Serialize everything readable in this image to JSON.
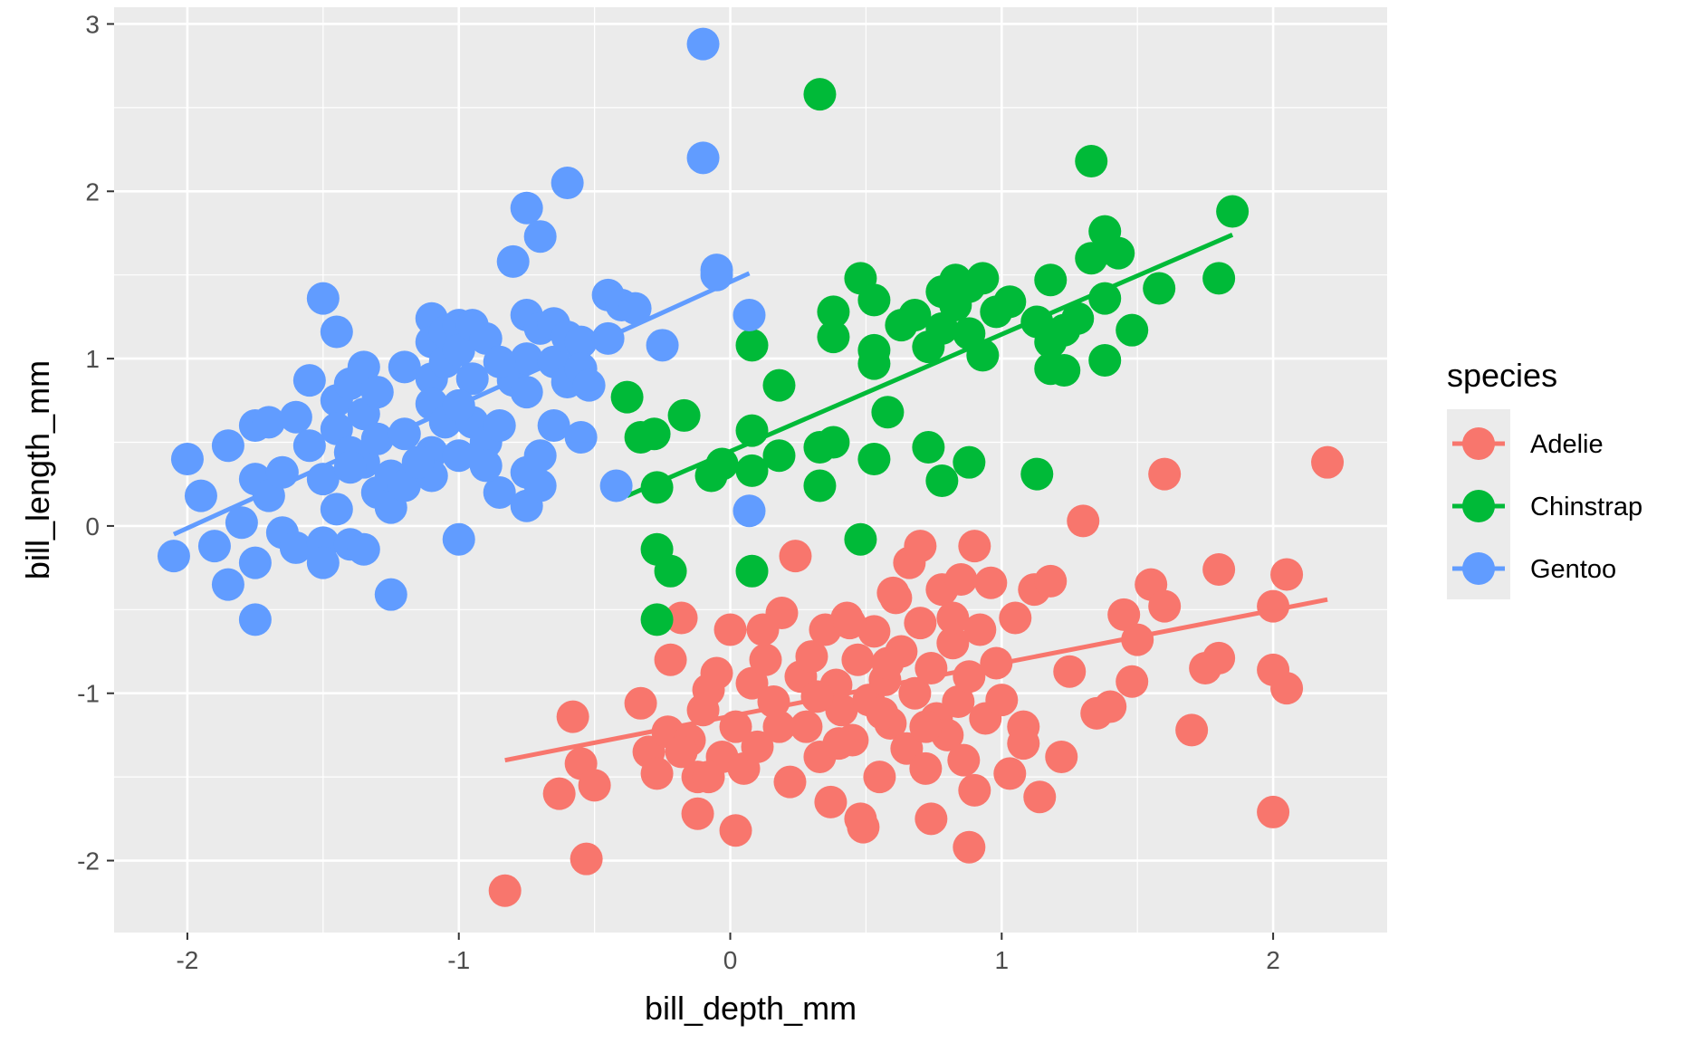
{
  "chart_data": {
    "type": "scatter",
    "title": "",
    "xlabel": "bill_depth_mm",
    "ylabel": "bill_length_mm",
    "xlim": [
      -2.27,
      2.42
    ],
    "ylim": [
      -2.43,
      3.1
    ],
    "x_ticks": [
      -2,
      -1,
      0,
      1,
      2
    ],
    "y_ticks": [
      -2,
      -1,
      0,
      1,
      2,
      3
    ],
    "x_tick_labels": [
      "-2",
      "-1",
      "0",
      "1",
      "2"
    ],
    "y_tick_labels": [
      "-2",
      "-1",
      "0",
      "1",
      "2",
      "3"
    ],
    "grid": true,
    "panel_background": "#ebebeb",
    "legend": {
      "title": "species",
      "position": "right"
    },
    "series": [
      {
        "name": "Adelie",
        "color": "#f8766d",
        "trend": {
          "x": [
            -0.83,
            2.2
          ],
          "y": [
            -1.4,
            -0.44
          ]
        },
        "points": [
          [
            -0.83,
            -2.18
          ],
          [
            -0.53,
            -1.99
          ],
          [
            -0.63,
            -1.6
          ],
          [
            -0.55,
            -1.42
          ],
          [
            -0.5,
            -1.55
          ],
          [
            -0.58,
            -1.14
          ],
          [
            -0.33,
            -1.06
          ],
          [
            -0.3,
            -1.35
          ],
          [
            -0.27,
            -1.48
          ],
          [
            -0.23,
            -1.23
          ],
          [
            -0.22,
            -0.8
          ],
          [
            -0.18,
            -0.55
          ],
          [
            -0.15,
            -1.28
          ],
          [
            -0.12,
            -1.5
          ],
          [
            -0.1,
            -1.1
          ],
          [
            -0.08,
            -0.98
          ],
          [
            -0.05,
            -0.88
          ],
          [
            -0.03,
            -1.38
          ],
          [
            0,
            -0.62
          ],
          [
            0.02,
            -1.2
          ],
          [
            0.05,
            -1.45
          ],
          [
            0.08,
            -0.94
          ],
          [
            0.1,
            -1.32
          ],
          [
            0.13,
            -0.8
          ],
          [
            0.16,
            -1.05
          ],
          [
            0.19,
            -0.52
          ],
          [
            0.22,
            -1.53
          ],
          [
            0.24,
            -0.18
          ],
          [
            0.26,
            -0.9
          ],
          [
            0.28,
            -1.2
          ],
          [
            0.3,
            -0.78
          ],
          [
            0.33,
            -1.38
          ],
          [
            0.35,
            -0.62
          ],
          [
            0.37,
            -1.65
          ],
          [
            0.39,
            -0.95
          ],
          [
            0.41,
            -1.1
          ],
          [
            0.43,
            -0.55
          ],
          [
            0.45,
            -1.28
          ],
          [
            0.47,
            -0.8
          ],
          [
            0.49,
            -1.8
          ],
          [
            0.51,
            -1.04
          ],
          [
            0.53,
            -0.63
          ],
          [
            0.55,
            -1.5
          ],
          [
            0.57,
            -0.92
          ],
          [
            0.59,
            -1.18
          ],
          [
            0.61,
            -0.43
          ],
          [
            0.63,
            -0.75
          ],
          [
            0.65,
            -1.33
          ],
          [
            0.66,
            -0.22
          ],
          [
            0.68,
            -1.0
          ],
          [
            0.7,
            -0.58
          ],
          [
            0.72,
            -1.45
          ],
          [
            0.74,
            -0.85
          ],
          [
            0.76,
            -1.15
          ],
          [
            0.78,
            -0.38
          ],
          [
            0.8,
            -1.25
          ],
          [
            0.82,
            -0.7
          ],
          [
            0.84,
            -1.05
          ],
          [
            0.86,
            -1.4
          ],
          [
            0.88,
            -0.9
          ],
          [
            0.9,
            -0.12
          ],
          [
            0.92,
            -0.62
          ],
          [
            0.94,
            -1.15
          ],
          [
            0.96,
            -0.34
          ],
          [
            0.98,
            -0.82
          ],
          [
            1.0,
            -1.04
          ],
          [
            1.03,
            -1.48
          ],
          [
            1.05,
            -0.55
          ],
          [
            1.08,
            -1.2
          ],
          [
            1.12,
            -0.38
          ],
          [
            1.14,
            -1.62
          ],
          [
            1.18,
            -0.33
          ],
          [
            1.22,
            -1.38
          ],
          [
            1.25,
            -0.87
          ],
          [
            1.3,
            0.03
          ],
          [
            1.35,
            -1.12
          ],
          [
            1.4,
            -1.08
          ],
          [
            1.45,
            -0.53
          ],
          [
            1.48,
            -0.93
          ],
          [
            1.5,
            -0.68
          ],
          [
            1.55,
            -0.35
          ],
          [
            1.6,
            -0.48
          ],
          [
            1.6,
            0.31
          ],
          [
            1.7,
            -1.22
          ],
          [
            1.75,
            -0.85
          ],
          [
            1.8,
            -0.26
          ],
          [
            1.8,
            -0.79
          ],
          [
            2.0,
            -1.71
          ],
          [
            2.0,
            -0.48
          ],
          [
            2.0,
            -0.86
          ],
          [
            2.05,
            -0.97
          ],
          [
            2.05,
            -0.29
          ],
          [
            2.2,
            0.38
          ],
          [
            -0.12,
            -1.72
          ],
          [
            0.02,
            -1.82
          ],
          [
            0.88,
            -1.92
          ],
          [
            0.74,
            -1.75
          ],
          [
            0.48,
            -1.75
          ],
          [
            0.9,
            -1.58
          ],
          [
            0.4,
            -1.3
          ],
          [
            0.56,
            -1.12
          ],
          [
            0.82,
            -0.55
          ],
          [
            0.6,
            -0.4
          ],
          [
            0.7,
            -0.12
          ],
          [
            0.85,
            -0.32
          ],
          [
            1.08,
            -1.3
          ],
          [
            0.72,
            -1.2
          ],
          [
            0.58,
            -0.82
          ],
          [
            0.44,
            -0.58
          ],
          [
            0.32,
            -1.02
          ],
          [
            0.12,
            -0.62
          ],
          [
            -0.18,
            -1.35
          ],
          [
            -0.08,
            -1.5
          ],
          [
            0.18,
            -1.2
          ]
        ]
      },
      {
        "name": "Chinstrap",
        "color": "#00ba38",
        "trend": {
          "x": [
            -0.38,
            1.85
          ],
          "y": [
            0.18,
            1.74
          ]
        },
        "points": [
          [
            -0.38,
            0.77
          ],
          [
            -0.33,
            0.53
          ],
          [
            -0.28,
            0.55
          ],
          [
            -0.27,
            0.23
          ],
          [
            -0.27,
            -0.14
          ],
          [
            -0.22,
            -0.27
          ],
          [
            -0.27,
            -0.56
          ],
          [
            -0.17,
            0.66
          ],
          [
            -0.07,
            0.3
          ],
          [
            -0.03,
            0.37
          ],
          [
            0.08,
            0.33
          ],
          [
            0.08,
            0.57
          ],
          [
            0.08,
            1.08
          ],
          [
            0.08,
            -0.27
          ],
          [
            0.18,
            0.84
          ],
          [
            0.18,
            0.42
          ],
          [
            0.33,
            2.58
          ],
          [
            0.33,
            0.47
          ],
          [
            0.33,
            0.24
          ],
          [
            0.38,
            0.5
          ],
          [
            0.38,
            1.13
          ],
          [
            0.38,
            1.28
          ],
          [
            0.48,
            1.48
          ],
          [
            0.48,
            -0.08
          ],
          [
            0.53,
            1.35
          ],
          [
            0.53,
            1.05
          ],
          [
            0.53,
            0.97
          ],
          [
            0.53,
            0.4
          ],
          [
            0.58,
            0.68
          ],
          [
            0.63,
            1.2
          ],
          [
            0.68,
            1.26
          ],
          [
            0.73,
            1.07
          ],
          [
            0.73,
            0.47
          ],
          [
            0.78,
            1.4
          ],
          [
            0.78,
            1.18
          ],
          [
            0.78,
            0.27
          ],
          [
            0.83,
            1.47
          ],
          [
            0.83,
            1.32
          ],
          [
            0.88,
            1.43
          ],
          [
            0.88,
            1.15
          ],
          [
            0.88,
            0.38
          ],
          [
            0.93,
            1.48
          ],
          [
            0.93,
            1.02
          ],
          [
            0.98,
            1.28
          ],
          [
            1.03,
            1.34
          ],
          [
            1.13,
            1.22
          ],
          [
            1.13,
            0.31
          ],
          [
            1.18,
            1.47
          ],
          [
            1.18,
            1.1
          ],
          [
            1.18,
            0.94
          ],
          [
            1.23,
            1.17
          ],
          [
            1.23,
            0.93
          ],
          [
            1.28,
            1.24
          ],
          [
            1.33,
            1.6
          ],
          [
            1.33,
            2.18
          ],
          [
            1.38,
            1.76
          ],
          [
            1.38,
            1.36
          ],
          [
            1.38,
            0.99
          ],
          [
            1.43,
            1.63
          ],
          [
            1.48,
            1.17
          ],
          [
            1.58,
            1.42
          ],
          [
            1.8,
            1.48
          ],
          [
            1.85,
            1.88
          ]
        ]
      },
      {
        "name": "Gentoo",
        "color": "#619cff",
        "trend": {
          "x": [
            -2.05,
            0.07
          ],
          "y": [
            -0.05,
            1.51
          ]
        },
        "points": [
          [
            -2.05,
            -0.18
          ],
          [
            -2.0,
            0.4
          ],
          [
            -1.95,
            0.18
          ],
          [
            -1.9,
            -0.12
          ],
          [
            -1.85,
            0.48
          ],
          [
            -1.85,
            -0.35
          ],
          [
            -1.8,
            0.02
          ],
          [
            -1.75,
            0.6
          ],
          [
            -1.75,
            0.28
          ],
          [
            -1.75,
            -0.22
          ],
          [
            -1.75,
            -0.56
          ],
          [
            -1.7,
            0.62
          ],
          [
            -1.7,
            0.18
          ],
          [
            -1.65,
            -0.04
          ],
          [
            -1.65,
            0.32
          ],
          [
            -1.6,
            0.65
          ],
          [
            -1.6,
            -0.13
          ],
          [
            -1.55,
            0.87
          ],
          [
            -1.55,
            0.48
          ],
          [
            -1.5,
            1.36
          ],
          [
            -1.5,
            0.28
          ],
          [
            -1.5,
            -0.1
          ],
          [
            -1.5,
            -0.22
          ],
          [
            -1.45,
            0.75
          ],
          [
            -1.45,
            0.58
          ],
          [
            -1.45,
            1.16
          ],
          [
            -1.45,
            0.1
          ],
          [
            -1.4,
            0.85
          ],
          [
            -1.4,
            0.44
          ],
          [
            -1.4,
            -0.11
          ],
          [
            -1.35,
            0.95
          ],
          [
            -1.35,
            0.67
          ],
          [
            -1.35,
            0.38
          ],
          [
            -1.35,
            -0.14
          ],
          [
            -1.3,
            0.8
          ],
          [
            -1.3,
            0.52
          ],
          [
            -1.3,
            0.2
          ],
          [
            -1.25,
            0.3
          ],
          [
            -1.25,
            0.11
          ],
          [
            -1.25,
            -0.41
          ],
          [
            -1.2,
            0.95
          ],
          [
            -1.2,
            0.55
          ],
          [
            -1.2,
            0.24
          ],
          [
            -1.1,
            1.24
          ],
          [
            -1.1,
            1.1
          ],
          [
            -1.1,
            0.88
          ],
          [
            -1.1,
            0.73
          ],
          [
            -1.1,
            0.44
          ],
          [
            -1.1,
            0.3
          ],
          [
            -1.05,
            1.16
          ],
          [
            -1.05,
            0.98
          ],
          [
            -1.05,
            0.62
          ],
          [
            -1.0,
            1.2
          ],
          [
            -1.0,
            1.05
          ],
          [
            -1.0,
            0.42
          ],
          [
            -1.0,
            -0.08
          ],
          [
            -0.95,
            1.2
          ],
          [
            -0.95,
            0.88
          ],
          [
            -0.95,
            0.62
          ],
          [
            -0.9,
            1.12
          ],
          [
            -0.9,
            0.5
          ],
          [
            -0.85,
            0.6
          ],
          [
            -0.85,
            0.2
          ],
          [
            -0.8,
            1.58
          ],
          [
            -0.8,
            0.87
          ],
          [
            -0.75,
            1.9
          ],
          [
            -0.75,
            1.26
          ],
          [
            -0.75,
            1.0
          ],
          [
            -0.75,
            0.8
          ],
          [
            -0.75,
            0.32
          ],
          [
            -0.75,
            0.12
          ],
          [
            -0.7,
            1.73
          ],
          [
            -0.7,
            1.18
          ],
          [
            -0.7,
            0.42
          ],
          [
            -0.7,
            0.24
          ],
          [
            -0.65,
            1.21
          ],
          [
            -0.65,
            0.98
          ],
          [
            -0.6,
            2.05
          ],
          [
            -0.6,
            1.13
          ],
          [
            -0.6,
            0.86
          ],
          [
            -0.55,
            1.1
          ],
          [
            -0.55,
            0.94
          ],
          [
            -0.55,
            0.53
          ],
          [
            -0.45,
            1.38
          ],
          [
            -0.45,
            1.12
          ],
          [
            -0.4,
            1.32
          ],
          [
            -0.35,
            1.3
          ],
          [
            -0.25,
            1.08
          ],
          [
            -0.1,
            2.88
          ],
          [
            -0.1,
            2.2
          ],
          [
            -0.05,
            1.53
          ],
          [
            -0.05,
            1.5
          ],
          [
            0.07,
            1.26
          ],
          [
            0.07,
            0.09
          ],
          [
            -0.42,
            0.24
          ],
          [
            -0.52,
            0.84
          ],
          [
            -0.9,
            0.36
          ],
          [
            -1.0,
            0.72
          ],
          [
            -0.85,
            0.98
          ],
          [
            -0.65,
            0.6
          ],
          [
            -1.15,
            0.38
          ],
          [
            -1.4,
            0.35
          ]
        ]
      }
    ]
  }
}
